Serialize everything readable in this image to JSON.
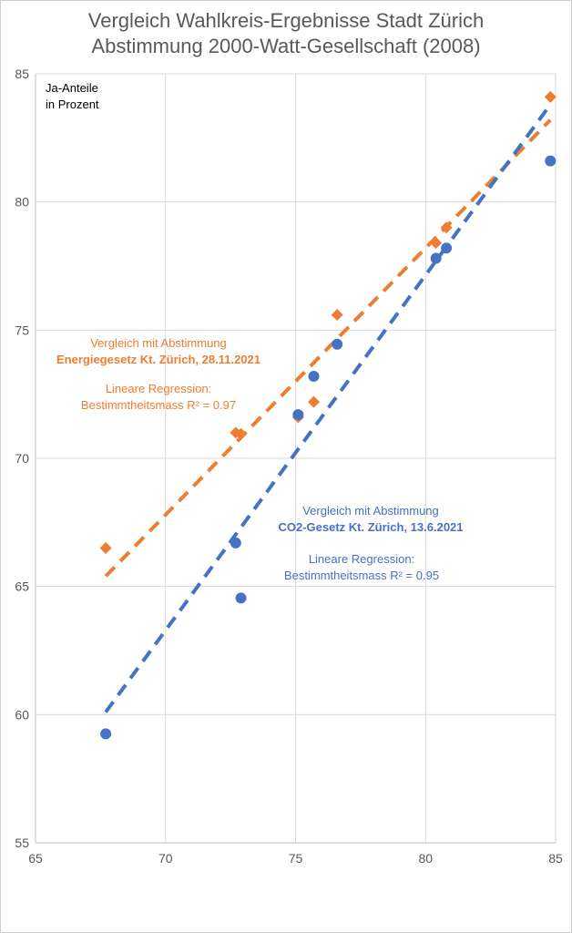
{
  "chart_data": {
    "type": "scatter",
    "title": [
      "Vergleich Wahlkreis-Ergebnisse Stadt Zürich",
      "Abstimmung 2000-Watt-Gesellschaft (2008)"
    ],
    "ylabel": [
      "Ja-Anteile",
      "in Prozent"
    ],
    "xlabel": "",
    "xlim": [
      65,
      85
    ],
    "ylim": [
      55,
      85
    ],
    "xticks": [
      65,
      70,
      75,
      80,
      85
    ],
    "yticks": [
      55,
      60,
      65,
      70,
      75,
      80,
      85
    ],
    "grid": true,
    "series": [
      {
        "marker": "diamond",
        "color": "#ED7D31",
        "points": [
          [
            67.7,
            66.5
          ],
          [
            72.7,
            71.0
          ],
          [
            72.9,
            70.95
          ],
          [
            75.1,
            71.6
          ],
          [
            75.7,
            72.2
          ],
          [
            76.6,
            75.6
          ],
          [
            80.4,
            78.4
          ],
          [
            80.8,
            79.0
          ],
          [
            84.8,
            84.1
          ]
        ],
        "trendline": [
          [
            67.7,
            65.4
          ],
          [
            84.8,
            83.2
          ]
        ],
        "annotation": {
          "lines": [
            "Vergleich mit Abstimmung",
            "Energiegesetz Kt. Zürich, 28.11.2021",
            "",
            "Lineare Regression:",
            "Bestimmtheitsmass R² = 0.97"
          ],
          "bold_line": 1
        }
      },
      {
        "marker": "circle",
        "color": "#4472C4",
        "points": [
          [
            67.7,
            59.25
          ],
          [
            72.7,
            66.7
          ],
          [
            72.9,
            64.55
          ],
          [
            75.1,
            71.7
          ],
          [
            75.7,
            73.2
          ],
          [
            76.6,
            74.45
          ],
          [
            80.4,
            77.8
          ],
          [
            80.8,
            78.2
          ],
          [
            84.8,
            81.6
          ]
        ],
        "trendline": [
          [
            67.7,
            60.1
          ],
          [
            84.8,
            83.8
          ]
        ],
        "annotation": {
          "lines": [
            "Vergleich mit Abstimmung",
            "CO2-Gesetz Kt. Zürich, 13.6.2021",
            "",
            "Lineare Regression:",
            "Bestimmtheitsmass R² = 0.95"
          ],
          "bold_line": 1
        }
      }
    ]
  }
}
